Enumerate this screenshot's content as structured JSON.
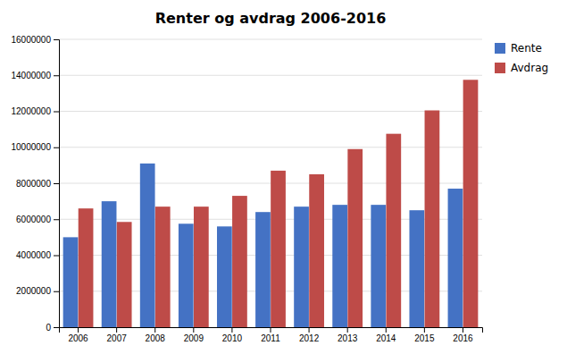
{
  "chart_data": {
    "type": "bar",
    "title": "Renter og avdrag 2006-2016",
    "categories": [
      "2006",
      "2007",
      "2008",
      "2009",
      "2010",
      "2011",
      "2012",
      "2013",
      "2014",
      "2015",
      "2016"
    ],
    "series": [
      {
        "name": "Rente",
        "color": "#4472C4",
        "values": [
          5000000,
          7000000,
          9100000,
          5750000,
          5600000,
          6400000,
          6700000,
          6800000,
          6800000,
          6500000,
          7700000
        ]
      },
      {
        "name": "Avdrag",
        "color": "#BE4B48",
        "values": [
          6600000,
          5850000,
          6700000,
          6700000,
          7300000,
          8700000,
          8500000,
          9900000,
          10750000,
          12050000,
          13750000
        ]
      }
    ],
    "ylim": [
      0,
      16000000
    ],
    "yticks": [
      0,
      2000000,
      4000000,
      6000000,
      8000000,
      10000000,
      12000000,
      14000000,
      16000000
    ],
    "grid": true,
    "legend": "upper right"
  }
}
